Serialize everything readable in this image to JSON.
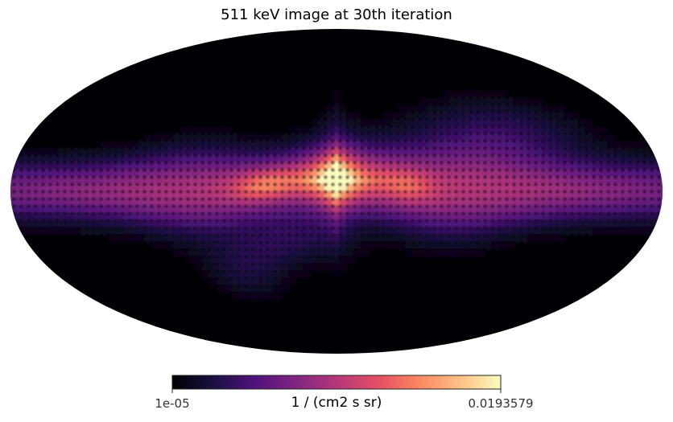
{
  "chart_data": {
    "type": "heatmap",
    "projection": "mollweide",
    "title": "511 keV image at 30th iteration",
    "colormap": "magma",
    "colorbar": {
      "min_label": "1e-05",
      "max_label": "0.0193579",
      "unit_label": "1 / (cm2 s sr)",
      "min": 1e-05,
      "max": 0.0193579,
      "placement": "bottom"
    },
    "features": [
      {
        "name": "galactic-center bulge",
        "lon_deg": 0,
        "lat_deg": 0,
        "value": 0.0193579
      },
      {
        "name": "galactic-plane disk",
        "lon_range_deg": [
          -180,
          180
        ],
        "lat_deg": 0,
        "value": 0.011
      },
      {
        "name": "positive-longitude lobe",
        "lon_deg": -40,
        "lat_deg": 0,
        "value": 0.012
      }
    ],
    "grid": false
  }
}
